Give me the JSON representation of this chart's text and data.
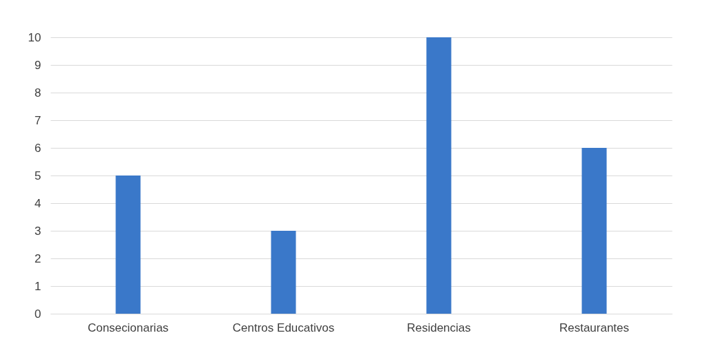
{
  "chart_data": {
    "type": "bar",
    "categories": [
      "Consecionarias",
      "Centros Educativos",
      "Residencias",
      "Restaurantes"
    ],
    "values": [
      5,
      3,
      10,
      6
    ],
    "color": "#3a78c9",
    "ylim": [
      0,
      10
    ],
    "yticks": [
      0,
      1,
      2,
      3,
      4,
      5,
      6,
      7,
      8,
      9,
      10
    ],
    "grid": "y"
  }
}
